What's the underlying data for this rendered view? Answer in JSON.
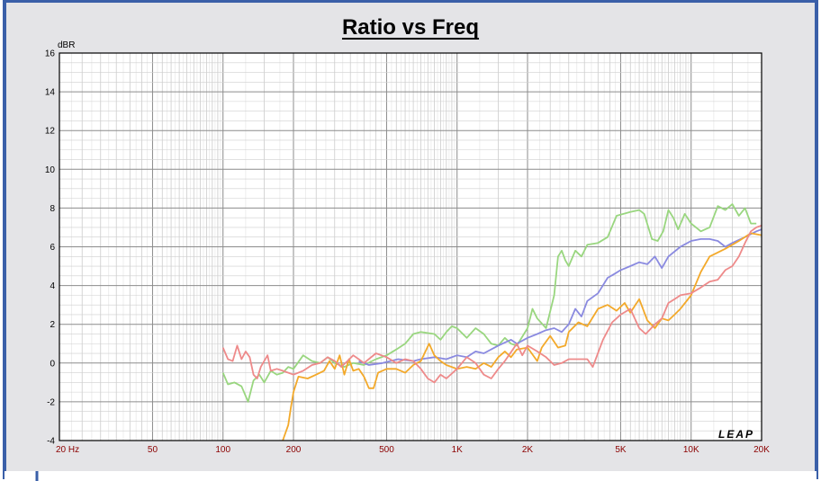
{
  "chart_data": {
    "type": "line",
    "title": "Ratio vs Freq",
    "ylabel": "dBR",
    "xlabel": "",
    "x_scale": "log",
    "xlim": [
      20,
      20000
    ],
    "ylim": [
      -4,
      16
    ],
    "y_ticks": [
      16,
      14,
      12,
      10,
      8,
      6,
      4,
      2,
      0,
      -2,
      -4
    ],
    "x_ticks": [
      {
        "value": 20,
        "label": "20  Hz"
      },
      {
        "value": 50,
        "label": "50"
      },
      {
        "value": 100,
        "label": "100"
      },
      {
        "value": 200,
        "label": "200"
      },
      {
        "value": 500,
        "label": "500"
      },
      {
        "value": 1000,
        "label": "1K"
      },
      {
        "value": 2000,
        "label": "2K"
      },
      {
        "value": 5000,
        "label": "5K"
      },
      {
        "value": 10000,
        "label": "10K"
      },
      {
        "value": 20000,
        "label": "20K"
      }
    ],
    "grid": true,
    "series": [
      {
        "color": "#99d67f",
        "points": [
          [
            100,
            -0.5
          ],
          [
            105,
            -1.1
          ],
          [
            112,
            -1.0
          ],
          [
            120,
            -1.2
          ],
          [
            128,
            -2.0
          ],
          [
            135,
            -0.9
          ],
          [
            143,
            -0.6
          ],
          [
            150,
            -1.0
          ],
          [
            160,
            -0.4
          ],
          [
            170,
            -0.6
          ],
          [
            180,
            -0.5
          ],
          [
            190,
            -0.2
          ],
          [
            200,
            -0.3
          ],
          [
            220,
            0.4
          ],
          [
            240,
            0.1
          ],
          [
            260,
            0.0
          ],
          [
            280,
            0.3
          ],
          [
            300,
            0.0
          ],
          [
            330,
            -0.2
          ],
          [
            360,
            0.0
          ],
          [
            400,
            -0.1
          ],
          [
            450,
            0.2
          ],
          [
            500,
            0.4
          ],
          [
            550,
            0.7
          ],
          [
            600,
            1.0
          ],
          [
            650,
            1.5
          ],
          [
            700,
            1.6
          ],
          [
            800,
            1.5
          ],
          [
            850,
            1.2
          ],
          [
            900,
            1.6
          ],
          [
            950,
            1.9
          ],
          [
            1000,
            1.8
          ],
          [
            1100,
            1.3
          ],
          [
            1200,
            1.8
          ],
          [
            1300,
            1.5
          ],
          [
            1400,
            1.0
          ],
          [
            1500,
            0.9
          ],
          [
            1600,
            1.3
          ],
          [
            1700,
            1.0
          ],
          [
            1800,
            0.9
          ],
          [
            2000,
            1.8
          ],
          [
            2100,
            2.8
          ],
          [
            2200,
            2.3
          ],
          [
            2400,
            1.8
          ],
          [
            2600,
            3.5
          ],
          [
            2700,
            5.5
          ],
          [
            2800,
            5.8
          ],
          [
            2900,
            5.3
          ],
          [
            3000,
            5.0
          ],
          [
            3200,
            5.8
          ],
          [
            3400,
            5.5
          ],
          [
            3600,
            6.1
          ],
          [
            4000,
            6.2
          ],
          [
            4400,
            6.5
          ],
          [
            4800,
            7.6
          ],
          [
            5500,
            7.8
          ],
          [
            6000,
            7.9
          ],
          [
            6300,
            7.7
          ],
          [
            6800,
            6.4
          ],
          [
            7200,
            6.3
          ],
          [
            7600,
            6.8
          ],
          [
            8000,
            7.9
          ],
          [
            8400,
            7.5
          ],
          [
            8800,
            6.9
          ],
          [
            9400,
            7.7
          ],
          [
            10000,
            7.2
          ],
          [
            11000,
            6.8
          ],
          [
            12000,
            7.0
          ],
          [
            13000,
            8.1
          ],
          [
            14000,
            7.9
          ],
          [
            15000,
            8.2
          ],
          [
            16000,
            7.6
          ],
          [
            17000,
            8.0
          ],
          [
            18000,
            7.2
          ],
          [
            19000,
            7.2
          ]
        ]
      },
      {
        "color": "#8a8ae0",
        "points": [
          [
            380,
            0.1
          ],
          [
            420,
            -0.1
          ],
          [
            480,
            0.0
          ],
          [
            560,
            0.2
          ],
          [
            650,
            0.1
          ],
          [
            700,
            0.2
          ],
          [
            800,
            0.3
          ],
          [
            900,
            0.2
          ],
          [
            1000,
            0.4
          ],
          [
            1100,
            0.3
          ],
          [
            1200,
            0.6
          ],
          [
            1300,
            0.5
          ],
          [
            1500,
            0.9
          ],
          [
            1700,
            1.2
          ],
          [
            1800,
            1.0
          ],
          [
            2000,
            1.3
          ],
          [
            2200,
            1.5
          ],
          [
            2400,
            1.7
          ],
          [
            2600,
            1.8
          ],
          [
            2800,
            1.6
          ],
          [
            3000,
            2.0
          ],
          [
            3200,
            2.8
          ],
          [
            3400,
            2.4
          ],
          [
            3600,
            3.2
          ],
          [
            4000,
            3.6
          ],
          [
            4400,
            4.4
          ],
          [
            4700,
            4.6
          ],
          [
            5000,
            4.8
          ],
          [
            5500,
            5.0
          ],
          [
            6000,
            5.2
          ],
          [
            6500,
            5.1
          ],
          [
            7000,
            5.5
          ],
          [
            7500,
            4.9
          ],
          [
            8000,
            5.5
          ],
          [
            9000,
            6.0
          ],
          [
            10000,
            6.3
          ],
          [
            11000,
            6.4
          ],
          [
            12000,
            6.4
          ],
          [
            13000,
            6.3
          ],
          [
            14000,
            6.0
          ],
          [
            15000,
            6.2
          ],
          [
            17000,
            6.5
          ],
          [
            19000,
            6.8
          ],
          [
            20000,
            6.9
          ]
        ]
      },
      {
        "color": "#f3a92a",
        "points": [
          [
            180,
            -4.0
          ],
          [
            190,
            -3.2
          ],
          [
            195,
            -2.3
          ],
          [
            200,
            -1.5
          ],
          [
            210,
            -0.7
          ],
          [
            230,
            -0.8
          ],
          [
            250,
            -0.6
          ],
          [
            270,
            -0.4
          ],
          [
            285,
            0.1
          ],
          [
            300,
            -0.3
          ],
          [
            315,
            0.4
          ],
          [
            330,
            -0.6
          ],
          [
            345,
            0.2
          ],
          [
            360,
            -0.4
          ],
          [
            380,
            -0.3
          ],
          [
            400,
            -0.7
          ],
          [
            420,
            -1.3
          ],
          [
            440,
            -1.3
          ],
          [
            460,
            -0.5
          ],
          [
            500,
            -0.3
          ],
          [
            550,
            -0.3
          ],
          [
            600,
            -0.5
          ],
          [
            650,
            -0.1
          ],
          [
            700,
            0.1
          ],
          [
            760,
            1.0
          ],
          [
            800,
            0.4
          ],
          [
            850,
            0.1
          ],
          [
            900,
            -0.1
          ],
          [
            1000,
            -0.3
          ],
          [
            1100,
            -0.2
          ],
          [
            1200,
            -0.3
          ],
          [
            1300,
            0.0
          ],
          [
            1400,
            -0.2
          ],
          [
            1500,
            0.3
          ],
          [
            1600,
            0.6
          ],
          [
            1700,
            0.3
          ],
          [
            1800,
            0.7
          ],
          [
            2000,
            0.8
          ],
          [
            2200,
            0.1
          ],
          [
            2300,
            0.8
          ],
          [
            2500,
            1.4
          ],
          [
            2700,
            0.8
          ],
          [
            2900,
            0.9
          ],
          [
            3000,
            1.6
          ],
          [
            3300,
            2.1
          ],
          [
            3600,
            1.9
          ],
          [
            4000,
            2.8
          ],
          [
            4400,
            3.0
          ],
          [
            4800,
            2.7
          ],
          [
            5200,
            3.1
          ],
          [
            5500,
            2.6
          ],
          [
            6000,
            3.3
          ],
          [
            6500,
            2.2
          ],
          [
            7000,
            1.8
          ],
          [
            7500,
            2.3
          ],
          [
            8000,
            2.2
          ],
          [
            8500,
            2.5
          ],
          [
            9000,
            2.8
          ],
          [
            10000,
            3.5
          ],
          [
            11000,
            4.7
          ],
          [
            12000,
            5.5
          ],
          [
            14000,
            5.9
          ],
          [
            16000,
            6.3
          ],
          [
            18000,
            6.7
          ],
          [
            20000,
            6.6
          ]
        ]
      },
      {
        "color": "#ee8a8a",
        "points": [
          [
            100,
            0.8
          ],
          [
            105,
            0.2
          ],
          [
            110,
            0.1
          ],
          [
            115,
            0.9
          ],
          [
            120,
            0.2
          ],
          [
            125,
            0.6
          ],
          [
            130,
            0.3
          ],
          [
            135,
            -0.6
          ],
          [
            140,
            -0.8
          ],
          [
            145,
            -0.2
          ],
          [
            150,
            0.1
          ],
          [
            155,
            0.4
          ],
          [
            160,
            -0.4
          ],
          [
            170,
            -0.3
          ],
          [
            180,
            -0.4
          ],
          [
            200,
            -0.6
          ],
          [
            220,
            -0.4
          ],
          [
            240,
            -0.1
          ],
          [
            260,
            0.0
          ],
          [
            280,
            0.3
          ],
          [
            300,
            0.1
          ],
          [
            320,
            -0.2
          ],
          [
            340,
            0.1
          ],
          [
            360,
            0.4
          ],
          [
            380,
            0.2
          ],
          [
            400,
            0.0
          ],
          [
            450,
            0.5
          ],
          [
            500,
            0.3
          ],
          [
            550,
            0.0
          ],
          [
            600,
            0.2
          ],
          [
            650,
            0.1
          ],
          [
            700,
            -0.3
          ],
          [
            750,
            -0.8
          ],
          [
            800,
            -1.0
          ],
          [
            850,
            -0.6
          ],
          [
            900,
            -0.8
          ],
          [
            1000,
            -0.3
          ],
          [
            1100,
            0.3
          ],
          [
            1200,
            0.0
          ],
          [
            1300,
            -0.6
          ],
          [
            1400,
            -0.8
          ],
          [
            1500,
            -0.3
          ],
          [
            1600,
            0.1
          ],
          [
            1800,
            1.0
          ],
          [
            1900,
            0.4
          ],
          [
            2000,
            0.9
          ],
          [
            2200,
            0.6
          ],
          [
            2400,
            0.3
          ],
          [
            2600,
            -0.1
          ],
          [
            2800,
            0.0
          ],
          [
            3000,
            0.2
          ],
          [
            3200,
            0.2
          ],
          [
            3600,
            0.2
          ],
          [
            3800,
            -0.2
          ],
          [
            4200,
            1.2
          ],
          [
            4600,
            2.1
          ],
          [
            5000,
            2.5
          ],
          [
            5500,
            2.8
          ],
          [
            6000,
            1.8
          ],
          [
            6400,
            1.5
          ],
          [
            7000,
            2.0
          ],
          [
            7500,
            2.3
          ],
          [
            8000,
            3.1
          ],
          [
            8500,
            3.3
          ],
          [
            9000,
            3.5
          ],
          [
            10000,
            3.6
          ],
          [
            11000,
            3.9
          ],
          [
            12000,
            4.2
          ],
          [
            13000,
            4.3
          ],
          [
            14000,
            4.8
          ],
          [
            15000,
            5.0
          ],
          [
            16000,
            5.5
          ],
          [
            17000,
            6.2
          ],
          [
            18000,
            6.8
          ],
          [
            19000,
            7.0
          ],
          [
            20000,
            7.1
          ]
        ]
      }
    ],
    "annotations": [
      "LEAP"
    ]
  }
}
